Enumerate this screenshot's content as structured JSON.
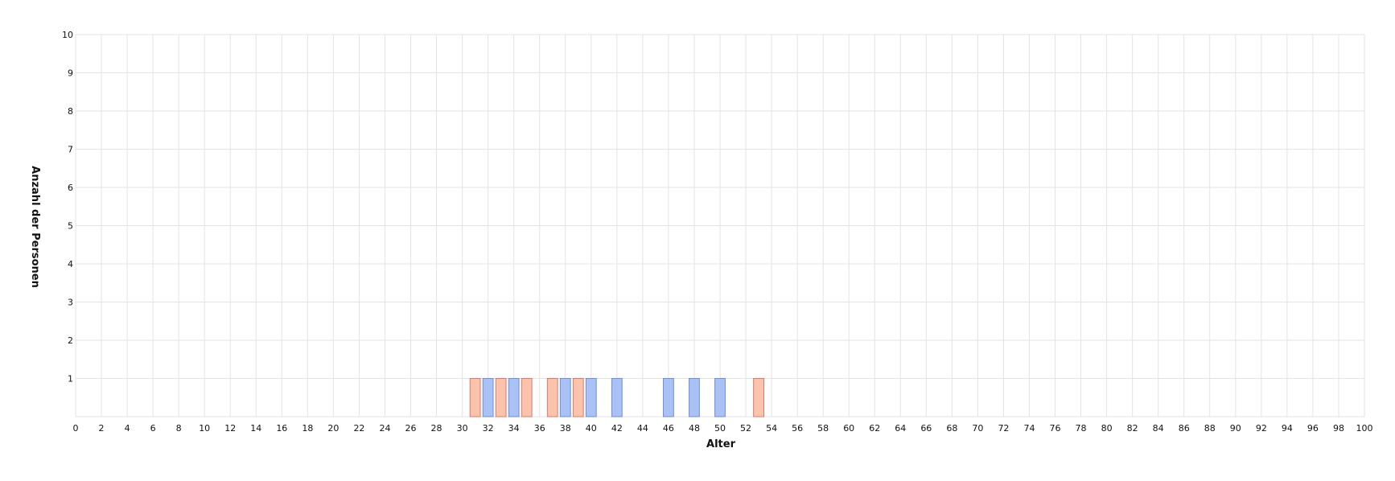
{
  "chart_data": {
    "type": "bar",
    "title": "",
    "xlabel": "Alter",
    "ylabel": "Anzahl der Personen",
    "xlim": [
      0,
      100
    ],
    "ylim": [
      0,
      10
    ],
    "x_ticks": [
      0,
      2,
      4,
      6,
      8,
      10,
      12,
      14,
      16,
      18,
      20,
      22,
      24,
      26,
      28,
      30,
      32,
      34,
      36,
      38,
      40,
      42,
      44,
      46,
      48,
      50,
      52,
      54,
      56,
      58,
      60,
      62,
      64,
      66,
      68,
      70,
      72,
      74,
      76,
      78,
      80,
      82,
      84,
      86,
      88,
      90,
      92,
      94,
      96,
      98,
      100
    ],
    "y_ticks": [
      1,
      2,
      3,
      4,
      5,
      6,
      7,
      8,
      9,
      10
    ],
    "grid": true,
    "bar_width": 0.8,
    "series": [
      {
        "color": "#fbc3ac",
        "stroke": "#d97b6a",
        "points": [
          {
            "x": 31,
            "value": 1
          },
          {
            "x": 33,
            "value": 1
          },
          {
            "x": 35,
            "value": 1
          },
          {
            "x": 37,
            "value": 1
          },
          {
            "x": 39,
            "value": 1
          },
          {
            "x": 53,
            "value": 1
          }
        ]
      },
      {
        "color": "#a9c1f5",
        "stroke": "#6f8fd8",
        "points": [
          {
            "x": 32,
            "value": 1
          },
          {
            "x": 34,
            "value": 1
          },
          {
            "x": 38,
            "value": 1
          },
          {
            "x": 40,
            "value": 1
          },
          {
            "x": 42,
            "value": 1
          },
          {
            "x": 46,
            "value": 1
          },
          {
            "x": 48,
            "value": 1
          },
          {
            "x": 50,
            "value": 1
          }
        ]
      }
    ]
  }
}
